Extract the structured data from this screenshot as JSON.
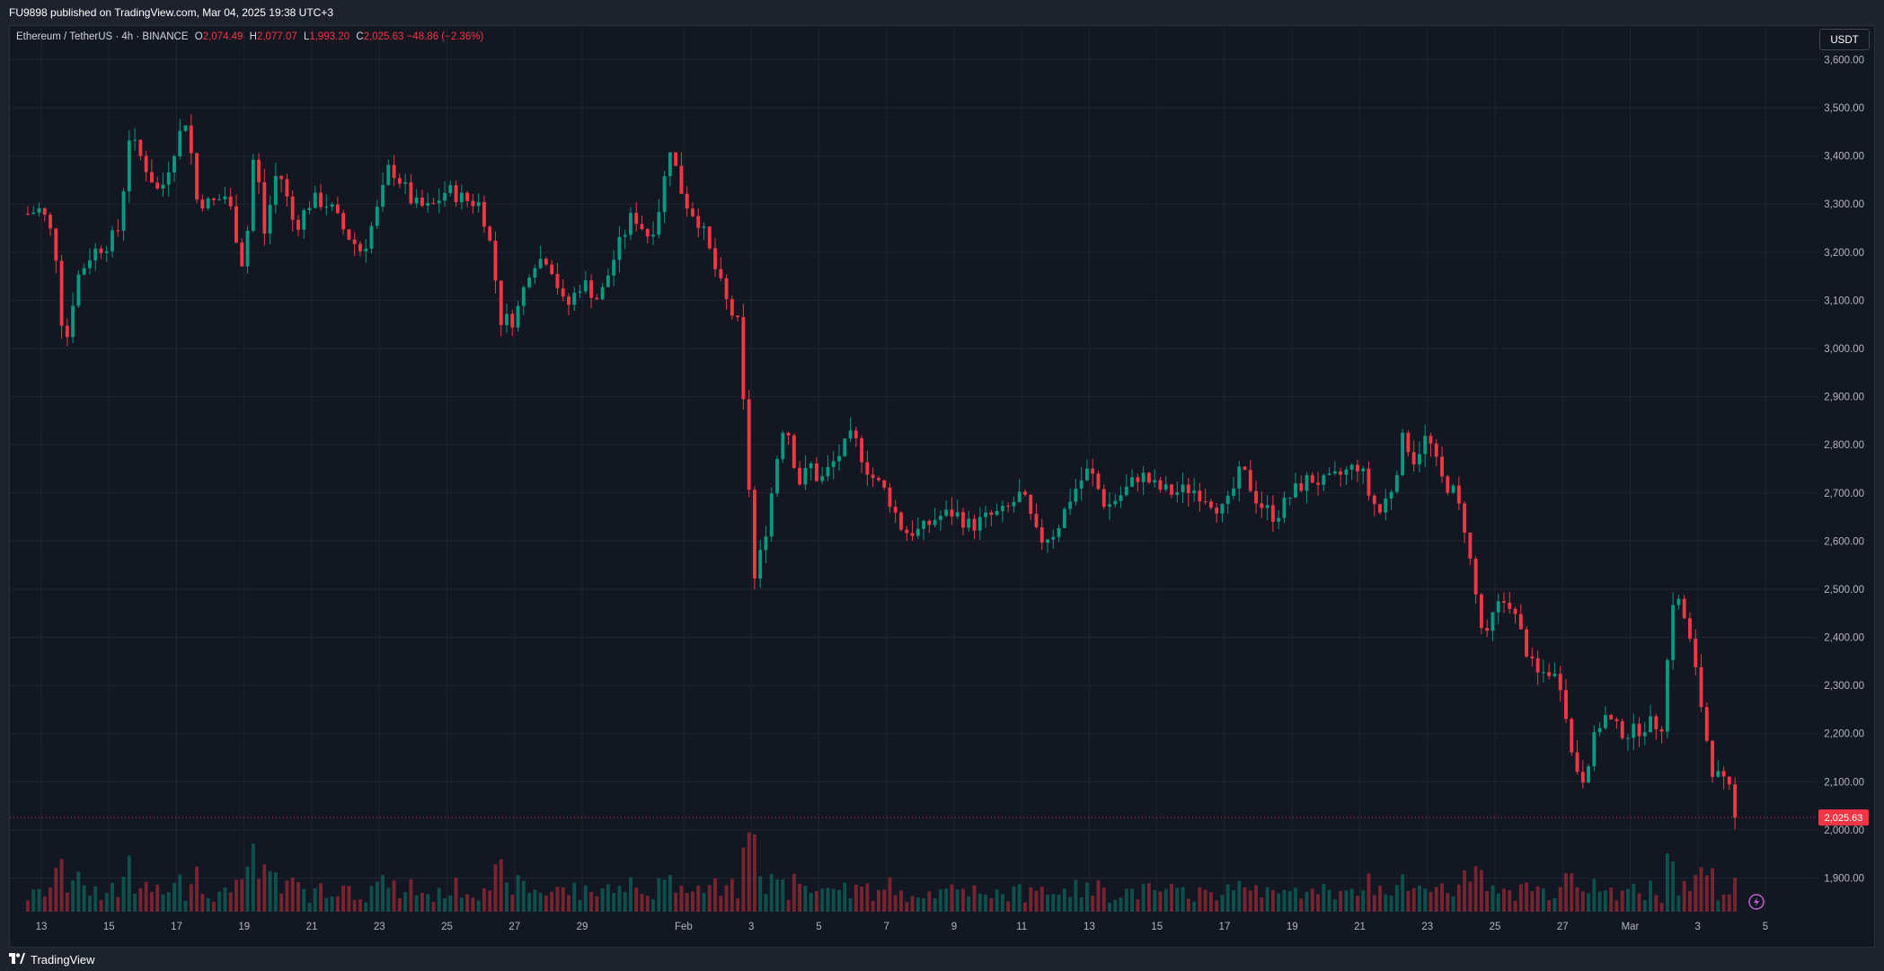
{
  "header": {
    "published": "FU9898 published on TradingView.com, Mar 04, 2025 19:38 UTC+3"
  },
  "legend": {
    "symbol": "Ethereum / TetherUS · 4h · BINANCE",
    "o_label": "O",
    "o_value": "2,074.49",
    "h_label": "H",
    "h_value": "2,077.07",
    "l_label": "L",
    "l_value": "1,993.20",
    "c_label": "C",
    "c_value": "2,025.63",
    "change": "−48.86 (−2.36%)"
  },
  "unit_button": "USDT",
  "footer": {
    "brand": "TradingView",
    "logo_icon": "tradingview-logo-icon"
  },
  "colors": {
    "up": "#089981",
    "down": "#f23645",
    "background": "#131722",
    "grid": "#1f2430"
  },
  "chart_data": {
    "type": "candlestick",
    "price_axis": {
      "ylim": [
        1830,
        3640
      ],
      "ticks": [
        {
          "value": 1900,
          "label": "1,900.00"
        },
        {
          "value": 2000,
          "label": "2,000.00"
        },
        {
          "value": 2100,
          "label": "2,100.00"
        },
        {
          "value": 2200,
          "label": "2,200.00"
        },
        {
          "value": 2300,
          "label": "2,300.00"
        },
        {
          "value": 2400,
          "label": "2,400.00"
        },
        {
          "value": 2500,
          "label": "2,500.00"
        },
        {
          "value": 2600,
          "label": "2,600.00"
        },
        {
          "value": 2700,
          "label": "2,700.00"
        },
        {
          "value": 2800,
          "label": "2,800.00"
        },
        {
          "value": 2900,
          "label": "2,900.00"
        },
        {
          "value": 3000,
          "label": "3,000.00"
        },
        {
          "value": 3100,
          "label": "3,100.00"
        },
        {
          "value": 3200,
          "label": "3,200.00"
        },
        {
          "value": 3300,
          "label": "3,300.00"
        },
        {
          "value": 3400,
          "label": "3,400.00"
        },
        {
          "value": 3500,
          "label": "3,500.00"
        },
        {
          "value": 3600,
          "label": "3,600.00"
        }
      ],
      "last_price": 2025.63,
      "last_price_label": "2,025.63"
    },
    "time_axis": {
      "range_days": [
        12.6,
        38.8
      ],
      "ticks": [
        {
          "day": 13,
          "label": "13"
        },
        {
          "day": 15,
          "label": "15"
        },
        {
          "day": 17,
          "label": "17"
        },
        {
          "day": 19,
          "label": "19"
        },
        {
          "day": 21,
          "label": "21"
        },
        {
          "day": 23,
          "label": "23"
        },
        {
          "day": 25,
          "label": "25"
        },
        {
          "day": 27,
          "label": "27"
        },
        {
          "day": 29,
          "label": "29"
        },
        {
          "day": 32,
          "label": "Feb"
        },
        {
          "day": 34,
          "label": "3"
        },
        {
          "day": 36,
          "label": "5"
        },
        {
          "day": 38,
          "label": "7"
        },
        {
          "day": 40,
          "label": "9"
        },
        {
          "day": 42,
          "label": "11"
        },
        {
          "day": 44,
          "label": "13"
        },
        {
          "day": 46,
          "label": "15"
        },
        {
          "day": 48,
          "label": "17"
        },
        {
          "day": 50,
          "label": "19"
        },
        {
          "day": 52,
          "label": "21"
        },
        {
          "day": 54,
          "label": "23"
        },
        {
          "day": 56,
          "label": "25"
        },
        {
          "day": 58,
          "label": "27"
        },
        {
          "day": 60,
          "label": "Mar"
        },
        {
          "day": 62,
          "label": "3"
        },
        {
          "day": 64,
          "label": "5"
        }
      ]
    },
    "close_path": [
      {
        "day": 12.6,
        "close": 3280
      },
      {
        "day": 13.0,
        "close": 3290
      },
      {
        "day": 13.4,
        "close": 3220
      },
      {
        "day": 13.6,
        "close": 3060
      },
      {
        "day": 13.8,
        "close": 3020
      },
      {
        "day": 14.0,
        "close": 3140
      },
      {
        "day": 14.5,
        "close": 3200
      },
      {
        "day": 15.0,
        "close": 3220
      },
      {
        "day": 15.3,
        "close": 3250
      },
      {
        "day": 15.6,
        "close": 3440
      },
      {
        "day": 16.0,
        "close": 3390
      },
      {
        "day": 16.5,
        "close": 3320
      },
      {
        "day": 17.0,
        "close": 3430
      },
      {
        "day": 17.3,
        "close": 3480
      },
      {
        "day": 17.6,
        "close": 3310
      },
      {
        "day": 18.0,
        "close": 3300
      },
      {
        "day": 18.5,
        "close": 3320
      },
      {
        "day": 19.0,
        "close": 3160
      },
      {
        "day": 19.3,
        "close": 3420
      },
      {
        "day": 19.6,
        "close": 3240
      },
      {
        "day": 20.0,
        "close": 3380
      },
      {
        "day": 20.5,
        "close": 3250
      },
      {
        "day": 21.0,
        "close": 3310
      },
      {
        "day": 21.5,
        "close": 3300
      },
      {
        "day": 22.0,
        "close": 3240
      },
      {
        "day": 22.5,
        "close": 3200
      },
      {
        "day": 23.0,
        "close": 3300
      },
      {
        "day": 23.3,
        "close": 3380
      },
      {
        "day": 23.7,
        "close": 3340
      },
      {
        "day": 24.0,
        "close": 3300
      },
      {
        "day": 24.5,
        "close": 3290
      },
      {
        "day": 25.0,
        "close": 3330
      },
      {
        "day": 25.5,
        "close": 3310
      },
      {
        "day": 26.0,
        "close": 3300
      },
      {
        "day": 26.3,
        "close": 3210
      },
      {
        "day": 26.6,
        "close": 3060
      },
      {
        "day": 27.0,
        "close": 3060
      },
      {
        "day": 27.5,
        "close": 3180
      },
      {
        "day": 28.0,
        "close": 3190
      },
      {
        "day": 28.5,
        "close": 3080
      },
      {
        "day": 29.0,
        "close": 3140
      },
      {
        "day": 29.5,
        "close": 3100
      },
      {
        "day": 30.0,
        "close": 3200
      },
      {
        "day": 30.5,
        "close": 3280
      },
      {
        "day": 31.0,
        "close": 3230
      },
      {
        "day": 31.3,
        "close": 3300
      },
      {
        "day": 31.6,
        "close": 3420
      },
      {
        "day": 32.0,
        "close": 3310
      },
      {
        "day": 32.5,
        "close": 3260
      },
      {
        "day": 33.0,
        "close": 3150
      },
      {
        "day": 33.3,
        "close": 3090
      },
      {
        "day": 33.6,
        "close": 3050
      },
      {
        "day": 33.9,
        "close": 2750
      },
      {
        "day": 34.1,
        "close": 2520
      },
      {
        "day": 34.4,
        "close": 2610
      },
      {
        "day": 34.8,
        "close": 2790
      },
      {
        "day": 35.0,
        "close": 2860
      },
      {
        "day": 35.4,
        "close": 2720
      },
      {
        "day": 35.8,
        "close": 2760
      },
      {
        "day": 36.0,
        "close": 2720
      },
      {
        "day": 36.5,
        "close": 2770
      },
      {
        "day": 37.0,
        "close": 2820
      },
      {
        "day": 37.5,
        "close": 2740
      },
      {
        "day": 38.0,
        "close": 2700
      },
      {
        "day": 38.5,
        "close": 2620
      },
      {
        "day": 39.0,
        "close": 2620
      },
      {
        "day": 39.5,
        "close": 2650
      },
      {
        "day": 40.0,
        "close": 2660
      },
      {
        "day": 40.5,
        "close": 2630
      },
      {
        "day": 41.0,
        "close": 2650
      },
      {
        "day": 41.5,
        "close": 2660
      },
      {
        "day": 42.0,
        "close": 2700
      },
      {
        "day": 42.5,
        "close": 2600
      },
      {
        "day": 43.0,
        "close": 2620
      },
      {
        "day": 43.5,
        "close": 2700
      },
      {
        "day": 44.0,
        "close": 2750
      },
      {
        "day": 44.5,
        "close": 2670
      },
      {
        "day": 45.0,
        "close": 2700
      },
      {
        "day": 45.5,
        "close": 2740
      },
      {
        "day": 46.0,
        "close": 2710
      },
      {
        "day": 46.5,
        "close": 2700
      },
      {
        "day": 47.0,
        "close": 2710
      },
      {
        "day": 47.5,
        "close": 2690
      },
      {
        "day": 48.0,
        "close": 2660
      },
      {
        "day": 48.5,
        "close": 2750
      },
      {
        "day": 49.0,
        "close": 2680
      },
      {
        "day": 49.5,
        "close": 2650
      },
      {
        "day": 50.0,
        "close": 2700
      },
      {
        "day": 50.5,
        "close": 2730
      },
      {
        "day": 51.0,
        "close": 2720
      },
      {
        "day": 51.5,
        "close": 2740
      },
      {
        "day": 52.0,
        "close": 2760
      },
      {
        "day": 52.3,
        "close": 2690
      },
      {
        "day": 52.6,
        "close": 2660
      },
      {
        "day": 53.0,
        "close": 2720
      },
      {
        "day": 53.3,
        "close": 2820
      },
      {
        "day": 53.6,
        "close": 2770
      },
      {
        "day": 54.0,
        "close": 2820
      },
      {
        "day": 54.4,
        "close": 2730
      },
      {
        "day": 54.8,
        "close": 2700
      },
      {
        "day": 55.1,
        "close": 2630
      },
      {
        "day": 55.4,
        "close": 2500
      },
      {
        "day": 55.7,
        "close": 2380
      },
      {
        "day": 56.0,
        "close": 2460
      },
      {
        "day": 56.4,
        "close": 2480
      },
      {
        "day": 56.8,
        "close": 2400
      },
      {
        "day": 57.2,
        "close": 2320
      },
      {
        "day": 57.6,
        "close": 2330
      },
      {
        "day": 58.0,
        "close": 2300
      },
      {
        "day": 58.3,
        "close": 2140
      },
      {
        "day": 58.6,
        "close": 2110
      },
      {
        "day": 58.9,
        "close": 2180
      },
      {
        "day": 59.2,
        "close": 2240
      },
      {
        "day": 59.6,
        "close": 2210
      },
      {
        "day": 60.0,
        "close": 2200
      },
      {
        "day": 60.5,
        "close": 2220
      },
      {
        "day": 61.0,
        "close": 2220
      },
      {
        "day": 61.2,
        "close": 2480
      },
      {
        "day": 61.5,
        "close": 2470
      },
      {
        "day": 61.8,
        "close": 2380
      },
      {
        "day": 62.1,
        "close": 2260
      },
      {
        "day": 62.4,
        "close": 2130
      },
      {
        "day": 62.7,
        "close": 2100
      },
      {
        "day": 63.0,
        "close": 2074
      },
      {
        "day": 63.2,
        "close": 2026
      }
    ],
    "volume_scale_max": 100
  }
}
